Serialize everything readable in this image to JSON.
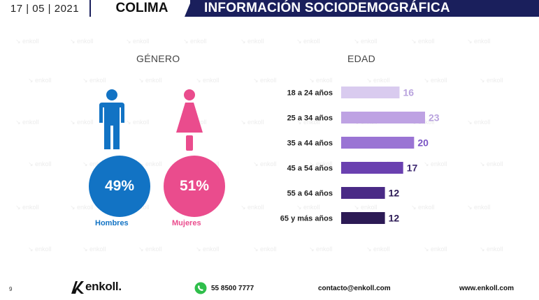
{
  "header": {
    "date": "17 | 05 | 2021",
    "state": "COLIMA",
    "title": "INFORMACIÓN SOCIODEMOGRÁFICA"
  },
  "watermark": "enkoll",
  "gender": {
    "title": "GÉNERO",
    "men": {
      "label": "Hombres",
      "percent": "49%",
      "color": "#1273c4",
      "icon": "man-icon"
    },
    "women": {
      "label": "Mujeres",
      "percent": "51%",
      "color": "#ea4c8d",
      "icon": "woman-icon"
    }
  },
  "age": {
    "title": "EDAD"
  },
  "chart_data": {
    "type": "bar",
    "orientation": "horizontal",
    "title": "EDAD",
    "categories": [
      "18 a 24 años",
      "25 a 34 años",
      "35 a 44 años",
      "45 a 54 años",
      "55 a 64 años",
      "65 y más años"
    ],
    "values": [
      16,
      23,
      20,
      17,
      12,
      12
    ],
    "colors": [
      "#d9cbef",
      "#bea2e3",
      "#9a74d4",
      "#6a40b0",
      "#4a2a86",
      "#2c1a55"
    ],
    "value_label_colors": [
      "#b9a3de",
      "#b9a3de",
      "#7b55c4",
      "#3e2a72",
      "#2c1a55",
      "#2c1a55"
    ],
    "xlim": [
      0,
      23
    ],
    "grid": false,
    "legend": "none"
  },
  "footer": {
    "page": "9",
    "brand": "enkoll.",
    "phone": "55 8500 7777",
    "email": "contacto@enkoll.com",
    "web": "www.enkoll.com"
  }
}
